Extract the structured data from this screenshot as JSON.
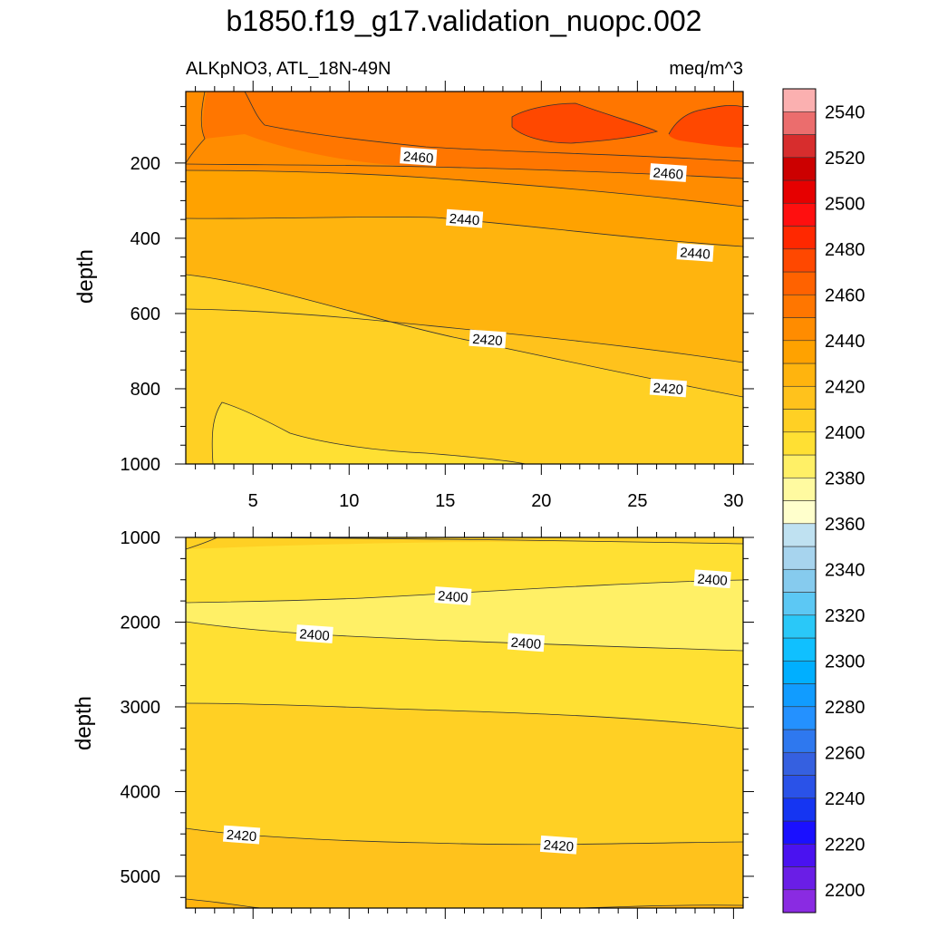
{
  "chart_data": {
    "type": "contour",
    "title": "b1850.f19_g17.validation_nuopc.002",
    "variable": "ALKpNO3, ATL_18N-49N",
    "units": "meq/m^3",
    "ylabel": "depth",
    "x_ticks": [
      5,
      10,
      15,
      20,
      25,
      30
    ],
    "x_range": [
      1.5,
      30.5
    ],
    "colorbar": {
      "levels": [
        2200,
        2210,
        2220,
        2230,
        2240,
        2250,
        2260,
        2270,
        2280,
        2290,
        2300,
        2310,
        2320,
        2330,
        2340,
        2350,
        2360,
        2370,
        2380,
        2390,
        2400,
        2410,
        2420,
        2430,
        2440,
        2450,
        2460,
        2470,
        2480,
        2490,
        2500,
        2510,
        2520,
        2530,
        2540,
        2550
      ],
      "labels": [
        "2200",
        "2220",
        "2240",
        "2260",
        "2280",
        "2300",
        "2320",
        "2340",
        "2360",
        "2380",
        "2400",
        "2420",
        "2440",
        "2460",
        "2480",
        "2500",
        "2520",
        "2540"
      ],
      "colors": [
        "#8a2be2",
        "#6a1ee6",
        "#4a12f0",
        "#1a10ff",
        "#1535f2",
        "#2a52e8",
        "#3560e0",
        "#2e78ef",
        "#2491ff",
        "#119cff",
        "#00afff",
        "#10c0ff",
        "#2ac8f8",
        "#5cc8f4",
        "#86cbee",
        "#a7d4ee",
        "#bfe1f1",
        "#ffffcc",
        "#fffaa0",
        "#fff066",
        "#ffe033",
        "#ffd024",
        "#ffc21c",
        "#ffb40e",
        "#ffa200",
        "#ff8c00",
        "#ff7600",
        "#ff6200",
        "#ff4800",
        "#ff2800",
        "#ff0f0f",
        "#e60000",
        "#cc0000",
        "#d72d2d",
        "#eb6d6d",
        "#fbb0b0"
      ]
    },
    "panels": [
      {
        "name": "upper",
        "y_ticks": [
          200,
          400,
          600,
          800,
          1000
        ],
        "y_range": [
          10,
          1000
        ],
        "contour_labels": [
          {
            "text": "2460",
            "x": 13.6,
            "y": 185
          },
          {
            "text": "2460",
            "x": 26.6,
            "y": 228
          },
          {
            "text": "2440",
            "x": 16.0,
            "y": 350
          },
          {
            "text": "2440",
            "x": 28.0,
            "y": 440
          },
          {
            "text": "2420",
            "x": 17.2,
            "y": 670
          },
          {
            "text": "2420",
            "x": 26.6,
            "y": 800
          }
        ]
      },
      {
        "name": "lower",
        "y_ticks": [
          1000,
          2000,
          3000,
          4000,
          5000
        ],
        "y_range": [
          1000,
          5375
        ],
        "contour_labels": [
          {
            "text": "2400",
            "x": 28.9,
            "y": 1500
          },
          {
            "text": "2400",
            "x": 15.4,
            "y": 1700
          },
          {
            "text": "2400",
            "x": 8.2,
            "y": 2150
          },
          {
            "text": "2400",
            "x": 19.2,
            "y": 2250
          },
          {
            "text": "2420",
            "x": 4.4,
            "y": 4520
          },
          {
            "text": "2420",
            "x": 20.9,
            "y": 4640
          }
        ]
      }
    ]
  }
}
